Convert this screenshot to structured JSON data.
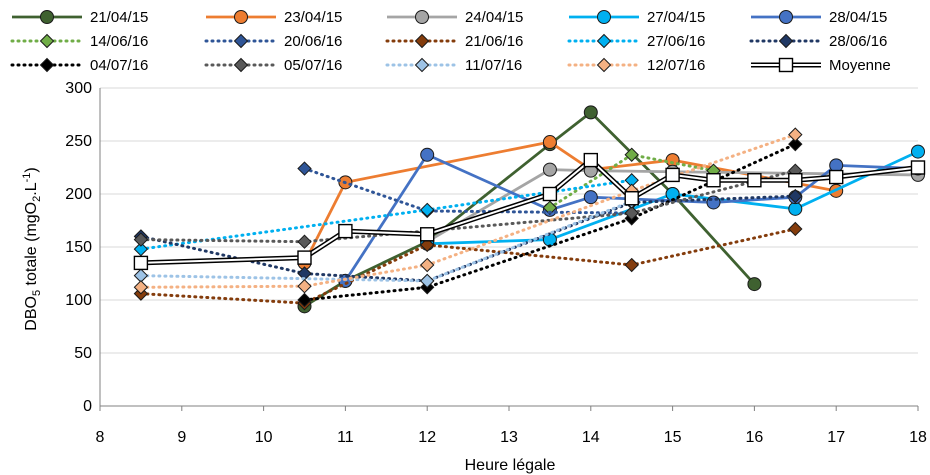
{
  "chart_data": {
    "type": "line",
    "xlabel": "Heure légale",
    "ylabel_main": "DBO",
    "ylabel_sub5": "5",
    "ylabel_rest": " totale (mgO",
    "ylabel_sub2": "2",
    "ylabel_dot": ".L",
    "ylabel_sup": "-1",
    "ylabel_end": ")",
    "xlim": [
      8,
      18
    ],
    "ylim": [
      0,
      300
    ],
    "xticks": [
      "8",
      "9",
      "10",
      "11",
      "12",
      "13",
      "14",
      "15",
      "16",
      "17",
      "18"
    ],
    "yticks": [
      "0",
      "50",
      "100",
      "150",
      "200",
      "250",
      "300"
    ],
    "legend_position": "top",
    "series": [
      {
        "name": "21/04/15",
        "color": "#3F6130",
        "style": "solid",
        "marker": "circle",
        "x": [
          10.5,
          11,
          12,
          13.5,
          14,
          15,
          16
        ],
        "y": [
          94,
          118,
          155,
          247,
          277,
          200,
          115
        ]
      },
      {
        "name": "23/04/15",
        "color": "#ED7D31",
        "style": "solid",
        "marker": "circle",
        "x": [
          10.5,
          11,
          13.5,
          14,
          15,
          17
        ],
        "y": [
          135,
          211,
          249,
          223,
          232,
          203
        ]
      },
      {
        "name": "24/04/15",
        "color": "#A5A5A5",
        "style": "solid",
        "marker": "circle",
        "x": [
          12,
          13.5,
          14,
          15,
          18
        ],
        "y": [
          155,
          223,
          222,
          221,
          218
        ]
      },
      {
        "name": "27/04/15",
        "color": "#00B0F0",
        "style": "solid",
        "marker": "circle",
        "x": [
          12,
          13.5,
          15,
          16.5,
          18
        ],
        "y": [
          153,
          157,
          200,
          186,
          240
        ]
      },
      {
        "name": "28/04/15",
        "color": "#4472C4",
        "style": "solid",
        "marker": "circle",
        "x": [
          11,
          12,
          13.5,
          14,
          15.5,
          16.5,
          17,
          18
        ],
        "y": [
          118,
          237,
          185,
          197,
          192,
          197,
          227,
          224
        ]
      },
      {
        "name": "14/06/16",
        "color": "#70AD47",
        "style": "dotted",
        "marker": "diamond",
        "x": [
          13.5,
          14.5,
          15.5
        ],
        "y": [
          187,
          237,
          222
        ]
      },
      {
        "name": "20/06/16",
        "color": "#2F5597",
        "style": "dotted",
        "marker": "diamond",
        "x": [
          10.5,
          12,
          14.5
        ],
        "y": [
          224,
          184,
          182
        ]
      },
      {
        "name": "21/06/16",
        "color": "#843C0C",
        "style": "dotted",
        "marker": "diamond",
        "x": [
          8.5,
          10.5,
          12,
          14.5,
          16.5
        ],
        "y": [
          106,
          97,
          152,
          133,
          167
        ]
      },
      {
        "name": "27/06/16",
        "color": "#00B0F0",
        "style": "dotted",
        "marker": "diamond",
        "x": [
          8.5,
          12,
          14.5
        ],
        "y": [
          148,
          185,
          213
        ]
      },
      {
        "name": "28/06/16",
        "color": "#203864",
        "style": "dotted",
        "marker": "diamond",
        "x": [
          8.5,
          10.5,
          12,
          14.5,
          16.5
        ],
        "y": [
          160,
          125,
          118,
          192,
          198
        ]
      },
      {
        "name": "04/07/16",
        "color": "#000000",
        "style": "dotted",
        "marker": "diamond",
        "x": [
          10.5,
          12,
          14.5,
          16.5
        ],
        "y": [
          100,
          112,
          177,
          247
        ]
      },
      {
        "name": "05/07/16",
        "color": "#595959",
        "style": "dotted",
        "marker": "diamond",
        "x": [
          8.5,
          10.5,
          14.5,
          16.5
        ],
        "y": [
          157,
          155,
          182,
          222
        ]
      },
      {
        "name": "11/07/16",
        "color": "#9DC3E6",
        "style": "dotted",
        "marker": "diamond",
        "x": [
          8.5,
          12,
          14.5
        ],
        "y": [
          123,
          118,
          193
        ]
      },
      {
        "name": "12/07/16",
        "color": "#F4B183",
        "style": "dotted",
        "marker": "diamond",
        "x": [
          8.5,
          10.5,
          12,
          14.5,
          16.5
        ],
        "y": [
          112,
          113,
          133,
          203,
          256
        ]
      },
      {
        "name": "Moyenne",
        "color": "#000000",
        "style": "double",
        "marker": "square",
        "x": [
          8.5,
          10.5,
          11,
          12,
          13.5,
          14,
          14.5,
          15,
          15.5,
          16,
          16.5,
          17,
          18
        ],
        "y": [
          135,
          140,
          165,
          162,
          200,
          232,
          196,
          218,
          213,
          213,
          213,
          216,
          225
        ]
      }
    ]
  }
}
